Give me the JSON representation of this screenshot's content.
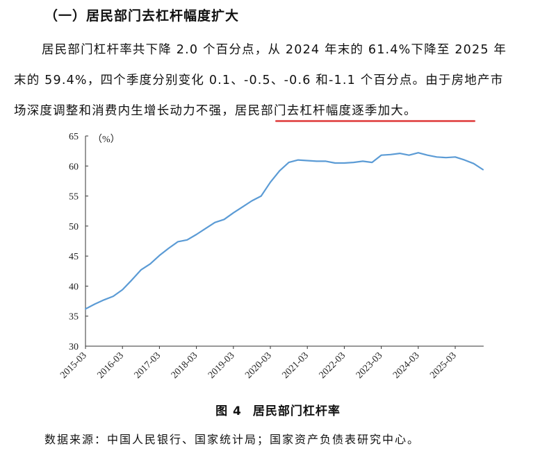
{
  "section": {
    "heading": "（一）居民部门去杠杆幅度扩大",
    "paragraph_lines": [
      "居民部门杠杆率共下降 2.0 个百分点，从 2024 年末的 61.4%下降至 2025 年",
      "末的 59.4%，四个季度分别变化 0.1、-0.5、-0.6 和-1.1 个百分点。由于房地产市",
      "场深度调整和消费内生增长动力不强，"
    ],
    "highlight_text": "居民部门去杠杆幅度逐季加大。",
    "highlight_color": "#e35656"
  },
  "figure": {
    "number": "图 4",
    "title": "居民部门杠杆率",
    "source": "数据来源：中国人民银行、国家统计局；国家资产负债表研究中心。"
  },
  "chart_data": {
    "type": "line",
    "title": "居民部门杠杆率",
    "xlabel": "",
    "ylabel": "（%）",
    "ylim": [
      30,
      65
    ],
    "yticks": [
      30,
      35,
      40,
      45,
      50,
      55,
      60,
      65
    ],
    "xticks": [
      "2015-03",
      "2016-03",
      "2017-03",
      "2018-03",
      "2019-03",
      "2020-03",
      "2021-03",
      "2022-03",
      "2023-03",
      "2024-03",
      "2025-03"
    ],
    "grid": false,
    "legend": null,
    "line_color": "#5b9bd5",
    "x": [
      "2015-03",
      "2015-06",
      "2015-09",
      "2015-12",
      "2016-03",
      "2016-06",
      "2016-09",
      "2016-12",
      "2017-03",
      "2017-06",
      "2017-09",
      "2017-12",
      "2018-03",
      "2018-06",
      "2018-09",
      "2018-12",
      "2019-03",
      "2019-06",
      "2019-09",
      "2019-12",
      "2020-03",
      "2020-06",
      "2020-09",
      "2020-12",
      "2021-03",
      "2021-06",
      "2021-09",
      "2021-12",
      "2022-03",
      "2022-06",
      "2022-09",
      "2022-12",
      "2023-03",
      "2023-06",
      "2023-09",
      "2023-12",
      "2024-03",
      "2024-06",
      "2024-09",
      "2024-12",
      "2025-03",
      "2025-06",
      "2025-09",
      "2025-12"
    ],
    "series": [
      {
        "name": "居民部门杠杆率",
        "values": [
          36.2,
          37.0,
          37.7,
          38.3,
          39.4,
          41.0,
          42.7,
          43.7,
          45.1,
          46.3,
          47.4,
          47.7,
          48.6,
          49.6,
          50.6,
          51.1,
          52.2,
          53.2,
          54.2,
          55.0,
          57.3,
          59.2,
          60.6,
          61.0,
          60.9,
          60.8,
          60.8,
          60.5,
          60.5,
          60.6,
          60.8,
          60.6,
          61.8,
          61.9,
          62.1,
          61.8,
          62.2,
          61.8,
          61.5,
          61.4,
          61.5,
          61.0,
          60.4,
          59.4
        ]
      }
    ]
  }
}
